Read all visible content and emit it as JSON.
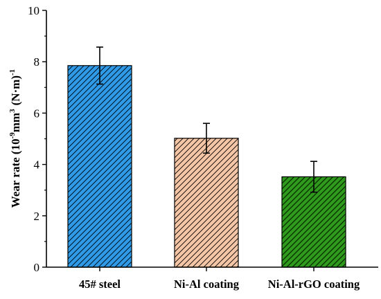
{
  "chart_data": {
    "type": "bar",
    "categories": [
      "45# steel",
      "Ni-Al coating",
      "Ni-Al-rGO coating"
    ],
    "values": [
      7.85,
      5.02,
      3.52
    ],
    "errors": [
      0.72,
      0.58,
      0.6
    ],
    "ylabel": {
      "prefix": "Wear rate (10",
      "exp1": "-9",
      "mid": "mm",
      "exp2": "3",
      "tail": "(N·m)",
      "exp3": "-1"
    },
    "ylim": [
      0,
      10
    ],
    "yticks": [
      0,
      2,
      4,
      6,
      8,
      10
    ],
    "bar_colors": [
      "#2f9be8",
      "#f5c6a5",
      "#2d9a1c"
    ],
    "hatch": "diagonal",
    "grid": false,
    "legend": "none"
  }
}
